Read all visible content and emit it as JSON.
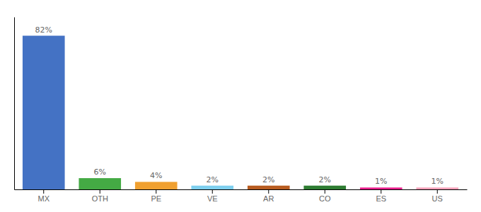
{
  "chart_data": {
    "type": "bar",
    "categories": [
      "MX",
      "OTH",
      "PE",
      "VE",
      "AR",
      "CO",
      "ES",
      "US"
    ],
    "values": [
      82,
      6,
      4,
      2,
      2,
      2,
      1,
      1
    ],
    "value_labels": [
      "82%",
      "6%",
      "4%",
      "2%",
      "2%",
      "2%",
      "1%",
      "1%"
    ],
    "colors": [
      "#4472c4",
      "#44aa44",
      "#f0a030",
      "#7ecfee",
      "#b85c20",
      "#2e7d32",
      "#e91e8c",
      "#f4a0b8"
    ],
    "ylim": [
      0,
      92
    ],
    "data_labels": true,
    "tick_labels": "x"
  }
}
